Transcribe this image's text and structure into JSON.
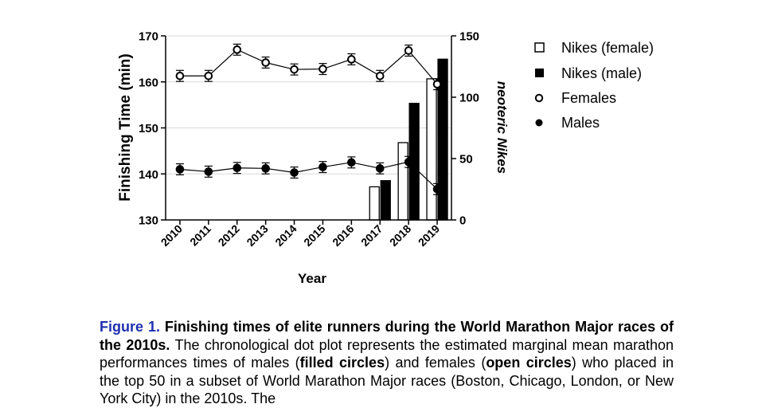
{
  "chart_data": {
    "type": "line+bar",
    "xlabel": "Year",
    "ylabel_left": "Finishing Time (min)",
    "ylabel_right": "neoteric Nikes",
    "categories": [
      "2010",
      "2011",
      "2012",
      "2013",
      "2014",
      "2015",
      "2016",
      "2017",
      "2018",
      "2019"
    ],
    "left_axis": {
      "ylim": [
        130,
        170
      ],
      "ticks": [
        "130",
        "140",
        "150",
        "160",
        "170"
      ]
    },
    "right_axis": {
      "ylim": [
        0,
        150
      ],
      "ticks": [
        "0",
        "50",
        "100",
        "150"
      ]
    },
    "series": [
      {
        "name": "Nikes (female)",
        "kind": "bar",
        "axis": "right",
        "fill": "#ffffff",
        "values": [
          null,
          null,
          null,
          null,
          null,
          null,
          null,
          27,
          63,
          115
        ]
      },
      {
        "name": "Nikes (male)",
        "kind": "bar",
        "axis": "right",
        "fill": "#000000",
        "values": [
          null,
          null,
          null,
          null,
          null,
          null,
          null,
          32,
          95,
          131
        ]
      },
      {
        "name": "Females",
        "kind": "line-open-circle",
        "axis": "left",
        "values": [
          161.3,
          161.3,
          167.0,
          164.2,
          162.7,
          162.8,
          164.9,
          161.3,
          166.8,
          159.5
        ],
        "error": [
          1.2,
          1.2,
          1.2,
          1.2,
          1.2,
          1.2,
          1.2,
          1.2,
          1.2,
          1.2
        ]
      },
      {
        "name": "Males",
        "kind": "line-filled-circle",
        "axis": "left",
        "values": [
          141.0,
          140.5,
          141.3,
          141.2,
          140.3,
          141.5,
          142.5,
          141.2,
          142.6,
          136.7
        ],
        "error": [
          1.2,
          1.2,
          1.2,
          1.2,
          1.2,
          1.2,
          1.2,
          1.2,
          1.2,
          1.2
        ]
      }
    ],
    "legend_placement": "right",
    "grid": "horizontal light lines at left ticks"
  },
  "caption": {
    "label": "Figure 1.",
    "title": "Finishing times of elite runners during the World Marathon Major races of the 2010s.",
    "s1": "The chronological dot plot represents the estimated marginal mean marathon performances times of males (",
    "b1": "filled circles",
    "s2": ") and females (",
    "b2": "open circles",
    "s3": ") who placed in the top 50 in a subset of World Marathon Major races (Boston, Chicago, London, or New York City) in the 2010s. The"
  }
}
